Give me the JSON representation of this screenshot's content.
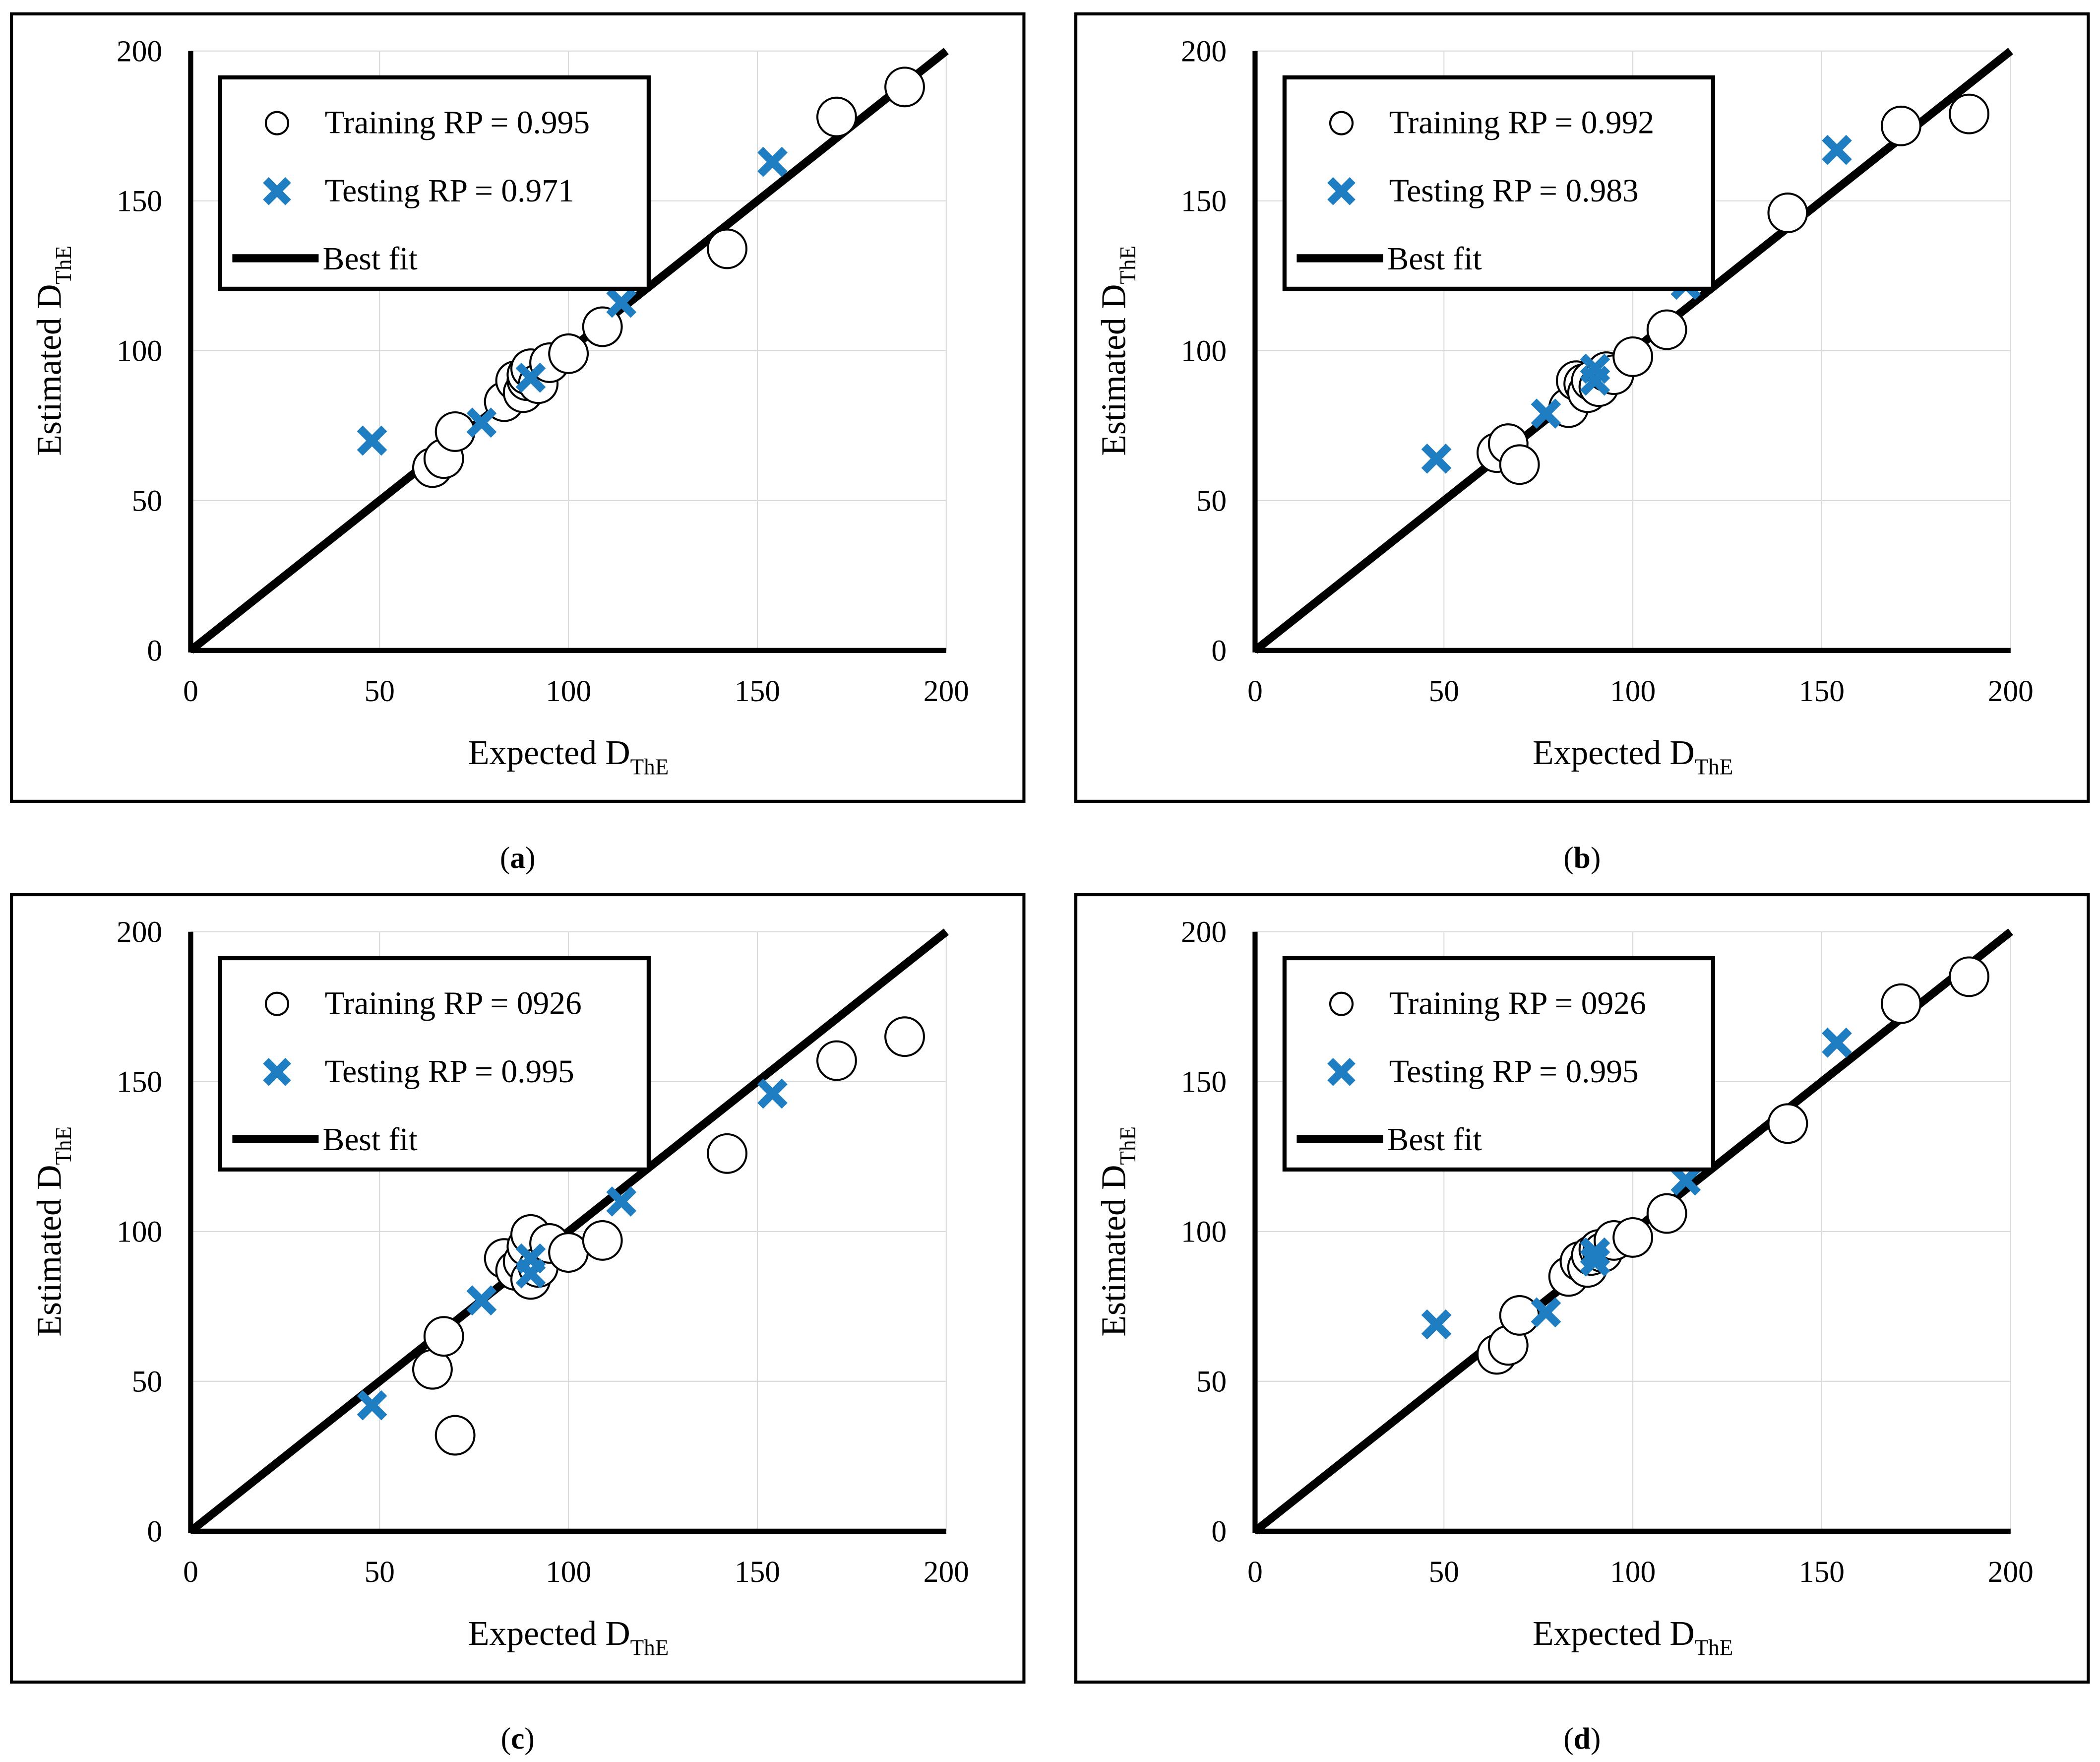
{
  "colors": {
    "frame": "#000000",
    "axis": "#000000",
    "gridline": "#d9d9d9",
    "training_marker_fill": "#ffffff",
    "training_marker_stroke": "#000000",
    "testing_marker": "#1f7dc1",
    "best_fit": "#000000"
  },
  "panels": [
    {
      "id": "a",
      "caption_letter": "a",
      "chart_data": {
        "type": "scatter",
        "xlabel": "Expected D",
        "xlabel_sub": "ThE",
        "ylabel": "Estimated D",
        "ylabel_sub": "ThE",
        "xlim": [
          0,
          200
        ],
        "ylim": [
          0,
          200
        ],
        "xticks": [
          0,
          50,
          100,
          150,
          200
        ],
        "yticks": [
          0,
          50,
          100,
          150,
          200
        ],
        "legend_position": "top-left",
        "best_fit": {
          "name": "Best fit",
          "from": [
            0,
            0
          ],
          "to": [
            200,
            200
          ]
        },
        "series": [
          {
            "name": "Training RP = 0.995",
            "marker": "circle",
            "points": [
              [
                64,
                61
              ],
              [
                67,
                64
              ],
              [
                70,
                73
              ],
              [
                83,
                83
              ],
              [
                86,
                90
              ],
              [
                88,
                86
              ],
              [
                89,
                90
              ],
              [
                89,
                92
              ],
              [
                90,
                94
              ],
              [
                92,
                89
              ],
              [
                95,
                96
              ],
              [
                100,
                99
              ],
              [
                109,
                108
              ],
              [
                142,
                134
              ],
              [
                171,
                178
              ],
              [
                189,
                188
              ]
            ]
          },
          {
            "name": "Testing RP = 0.971",
            "marker": "x",
            "points": [
              [
                48,
                70
              ],
              [
                77,
                76
              ],
              [
                90,
                91
              ],
              [
                114,
                116
              ],
              [
                154,
                163
              ]
            ]
          }
        ]
      }
    },
    {
      "id": "b",
      "caption_letter": "b",
      "chart_data": {
        "type": "scatter",
        "xlabel": "Expected D",
        "xlabel_sub": "ThE",
        "ylabel": "Estimated D",
        "ylabel_sub": "ThE",
        "xlim": [
          0,
          200
        ],
        "ylim": [
          0,
          200
        ],
        "xticks": [
          0,
          50,
          100,
          150,
          200
        ],
        "yticks": [
          0,
          50,
          100,
          150,
          200
        ],
        "legend_position": "top-left",
        "best_fit": {
          "name": "Best fit",
          "from": [
            0,
            0
          ],
          "to": [
            200,
            200
          ]
        },
        "series": [
          {
            "name": "Training RP = 0.992",
            "marker": "circle",
            "points": [
              [
                64,
                66
              ],
              [
                67,
                69
              ],
              [
                70,
                62
              ],
              [
                83,
                81
              ],
              [
                85,
                90
              ],
              [
                87,
                89
              ],
              [
                88,
                86
              ],
              [
                89,
                90
              ],
              [
                91,
                88
              ],
              [
                93,
                93
              ],
              [
                95,
                92
              ],
              [
                100,
                98
              ],
              [
                109,
                107
              ],
              [
                141,
                146
              ],
              [
                171,
                175
              ],
              [
                189,
                179
              ]
            ]
          },
          {
            "name": "Testing RP = 0.983",
            "marker": "x",
            "points": [
              [
                48,
                64
              ],
              [
                77,
                79
              ],
              [
                90,
                90
              ],
              [
                90,
                94
              ],
              [
                114,
                122
              ],
              [
                154,
                167
              ]
            ]
          }
        ]
      }
    },
    {
      "id": "c",
      "caption_letter": "c",
      "chart_data": {
        "type": "scatter",
        "xlabel": "Expected D",
        "xlabel_sub": "ThE",
        "ylabel": "Estimated D",
        "ylabel_sub": "ThE",
        "xlim": [
          0,
          200
        ],
        "ylim": [
          0,
          200
        ],
        "xticks": [
          0,
          50,
          100,
          150,
          200
        ],
        "yticks": [
          0,
          50,
          100,
          150,
          200
        ],
        "legend_position": "top-left",
        "best_fit": {
          "name": "Best fit",
          "from": [
            0,
            0
          ],
          "to": [
            200,
            200
          ]
        },
        "series": [
          {
            "name": "Training RP = 0926",
            "marker": "circle",
            "points": [
              [
                64,
                54
              ],
              [
                67,
                65
              ],
              [
                70,
                32
              ],
              [
                83,
                91
              ],
              [
                86,
                87
              ],
              [
                88,
                90
              ],
              [
                89,
                95
              ],
              [
                90,
                99
              ],
              [
                90,
                84
              ],
              [
                92,
                88
              ],
              [
                95,
                96
              ],
              [
                100,
                93
              ],
              [
                109,
                97
              ],
              [
                142,
                126
              ],
              [
                171,
                157
              ],
              [
                189,
                165
              ]
            ]
          },
          {
            "name": "Testing RP = 0.995",
            "marker": "x",
            "points": [
              [
                48,
                42
              ],
              [
                77,
                77
              ],
              [
                90,
                86
              ],
              [
                90,
                91
              ],
              [
                114,
                110
              ],
              [
                154,
                146
              ]
            ]
          }
        ]
      }
    },
    {
      "id": "d",
      "caption_letter": "d",
      "chart_data": {
        "type": "scatter",
        "xlabel": "Expected D",
        "xlabel_sub": "ThE",
        "ylabel": "Estimated D",
        "ylabel_sub": "ThE",
        "xlim": [
          0,
          200
        ],
        "ylim": [
          0,
          200
        ],
        "xticks": [
          0,
          50,
          100,
          150,
          200
        ],
        "yticks": [
          0,
          50,
          100,
          150,
          200
        ],
        "legend_position": "top-left",
        "best_fit": {
          "name": "Best fit",
          "from": [
            0,
            0
          ],
          "to": [
            200,
            200
          ]
        },
        "series": [
          {
            "name": "Training RP = 0926",
            "marker": "circle",
            "points": [
              [
                64,
                59
              ],
              [
                67,
                62
              ],
              [
                70,
                72
              ],
              [
                83,
                85
              ],
              [
                86,
                90
              ],
              [
                88,
                88
              ],
              [
                89,
                92
              ],
              [
                91,
                94
              ],
              [
                92,
                93
              ],
              [
                95,
                97
              ],
              [
                100,
                98
              ],
              [
                109,
                106
              ],
              [
                141,
                136
              ],
              [
                171,
                176
              ],
              [
                189,
                185
              ]
            ]
          },
          {
            "name": "Testing RP = 0.995",
            "marker": "x",
            "points": [
              [
                48,
                69
              ],
              [
                77,
                73
              ],
              [
                90,
                90
              ],
              [
                90,
                93
              ],
              [
                114,
                117
              ],
              [
                154,
                163
              ]
            ]
          }
        ]
      }
    }
  ]
}
